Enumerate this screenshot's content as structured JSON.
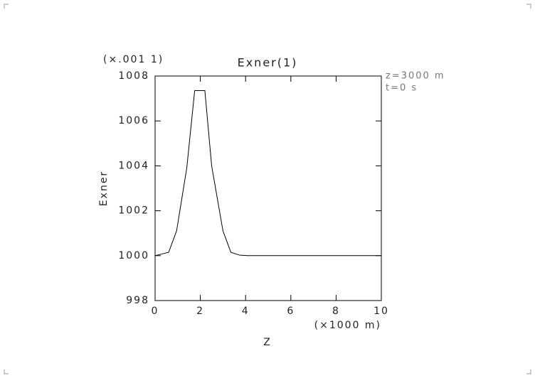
{
  "chart_data": {
    "type": "line",
    "title": "Exner(1)",
    "scale_note": "(×.001 1)",
    "annotations": [
      "z=3000 m",
      "t=0 s"
    ],
    "x_label": "Z",
    "x_unit": "(×1000 m)",
    "y_label": "Exner",
    "x": [
      0,
      0.6,
      0.95,
      1.4,
      1.75,
      2.2,
      2.5,
      3.0,
      3.35,
      3.75,
      4.1,
      10
    ],
    "series": [
      {
        "name": "Exner",
        "color": "#000000",
        "values": [
          1000,
          1000.15,
          1001.1,
          1003.9,
          1007.35,
          1007.35,
          1004,
          1001.1,
          1000.15,
          1000.02,
          1000,
          1000
        ]
      }
    ],
    "xlim": [
      0,
      10
    ],
    "xticks": [
      0,
      2,
      4,
      6,
      8,
      10
    ],
    "ylim": [
      998,
      1008
    ],
    "yticks": [
      998,
      1000,
      1002,
      1004,
      1006,
      1008
    ]
  }
}
